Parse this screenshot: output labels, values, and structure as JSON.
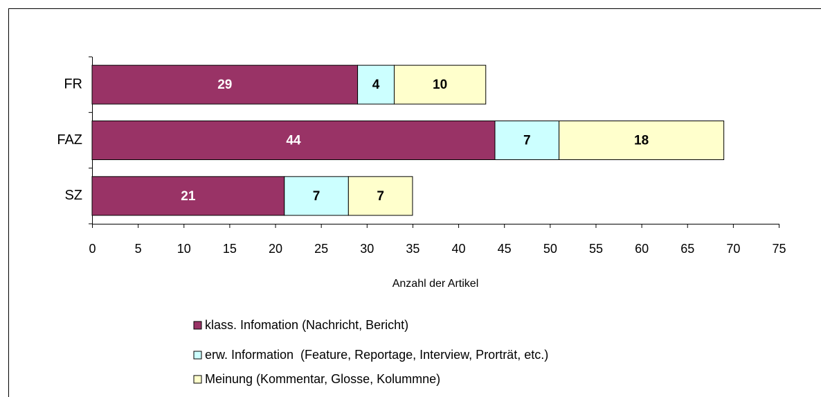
{
  "chart_data": {
    "type": "stacked-barh",
    "categories": [
      "FR",
      "FAZ",
      "SZ"
    ],
    "series": [
      {
        "name": "klass. Infomation (Nachricht, Bericht)",
        "color": "#993366",
        "label_color": "#ffffff",
        "values": [
          29,
          44,
          21
        ]
      },
      {
        "name": "erw. Information  (Feature, Reportage, Interview, Prorträt, etc.)",
        "color": "#ccffff",
        "label_color": "#000000",
        "values": [
          4,
          7,
          7
        ]
      },
      {
        "name": "Meinung (Kommentar, Glosse, Kolummne)",
        "color": "#ffffcc",
        "label_color": "#000000",
        "values": [
          10,
          18,
          7
        ]
      }
    ],
    "x_label": "Anzahl der Artikel",
    "xlim": [
      0,
      75
    ],
    "xticks": [
      0,
      5,
      10,
      15,
      20,
      25,
      30,
      35,
      40,
      45,
      50,
      55,
      60,
      65,
      70,
      75
    ],
    "legend": "bottom"
  }
}
